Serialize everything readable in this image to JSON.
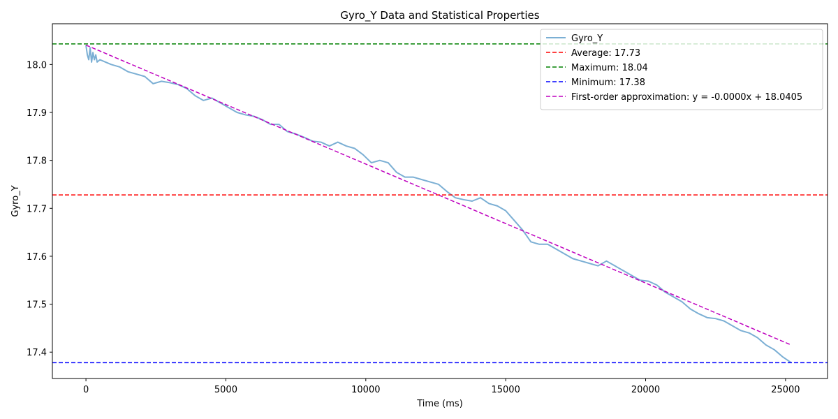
{
  "chart_data": {
    "type": "line",
    "title": "Gyro_Y Data and Statistical Properties",
    "xlabel": "Time (ms)",
    "ylabel": "Gyro_Y",
    "xlim": [
      -1200,
      26500
    ],
    "ylim": [
      17.345,
      18.085
    ],
    "xticks": [
      0,
      5000,
      10000,
      15000,
      20000,
      25000
    ],
    "xtick_labels": [
      "0",
      "5000",
      "10000",
      "15000",
      "20000",
      "25000"
    ],
    "yticks": [
      17.4,
      17.5,
      17.6,
      17.7,
      17.8,
      17.9,
      18.0
    ],
    "ytick_labels": [
      "17.4",
      "17.5",
      "17.6",
      "17.7",
      "17.8",
      "17.9",
      "18.0"
    ],
    "grid": false,
    "legend_position": "top-right",
    "series": [
      {
        "name": "Gyro_Y",
        "color": "#7bafd4",
        "style": "solid",
        "x": [
          0,
          50,
          100,
          150,
          200,
          250,
          300,
          350,
          400,
          500,
          700,
          900,
          1200,
          1500,
          1800,
          2100,
          2400,
          2700,
          3000,
          3300,
          3600,
          3900,
          4200,
          4500,
          4800,
          5100,
          5400,
          5700,
          6000,
          6300,
          6600,
          6900,
          7200,
          7500,
          7800,
          8100,
          8400,
          8700,
          9000,
          9300,
          9600,
          9900,
          10200,
          10500,
          10800,
          11100,
          11400,
          11700,
          12000,
          12300,
          12600,
          12900,
          13200,
          13500,
          13800,
          14100,
          14400,
          14700,
          15000,
          15300,
          15600,
          15900,
          16200,
          16500,
          16800,
          17100,
          17400,
          17700,
          18000,
          18300,
          18600,
          18900,
          19200,
          19500,
          19800,
          20100,
          20400,
          20700,
          21000,
          21300,
          21600,
          21900,
          22200,
          22500,
          22800,
          23100,
          23400,
          23700,
          24000,
          24300,
          24600,
          24900,
          25200
        ],
        "y": [
          18.04,
          18.02,
          18.01,
          18.035,
          18.005,
          18.025,
          18.01,
          18.02,
          18.005,
          18.01,
          18.005,
          18.0,
          17.995,
          17.985,
          17.98,
          17.975,
          17.96,
          17.965,
          17.962,
          17.958,
          17.95,
          17.935,
          17.925,
          17.93,
          17.92,
          17.91,
          17.9,
          17.895,
          17.892,
          17.885,
          17.875,
          17.875,
          17.86,
          17.855,
          17.848,
          17.84,
          17.838,
          17.83,
          17.838,
          17.83,
          17.825,
          17.812,
          17.795,
          17.8,
          17.795,
          17.775,
          17.765,
          17.765,
          17.76,
          17.755,
          17.75,
          17.735,
          17.722,
          17.718,
          17.715,
          17.722,
          17.71,
          17.705,
          17.695,
          17.675,
          17.655,
          17.63,
          17.625,
          17.625,
          17.615,
          17.605,
          17.595,
          17.59,
          17.585,
          17.58,
          17.59,
          17.58,
          17.57,
          17.56,
          17.55,
          17.548,
          17.54,
          17.525,
          17.515,
          17.505,
          17.49,
          17.48,
          17.472,
          17.47,
          17.465,
          17.455,
          17.445,
          17.44,
          17.43,
          17.415,
          17.405,
          17.39,
          17.378
        ]
      },
      {
        "name": "Average: 17.73",
        "color": "#ff0000",
        "style": "dashed",
        "type": "hline",
        "value": 17.728
      },
      {
        "name": "Maximum: 18.04",
        "color": "#008000",
        "style": "dashed",
        "type": "hline",
        "value": 18.043
      },
      {
        "name": "Minimum: 17.38",
        "color": "#0000ff",
        "style": "dashed",
        "type": "hline",
        "value": 17.378
      },
      {
        "name": "First-order approximation: y = -0.0000x + 18.0405",
        "color": "#bf00bf",
        "style": "dashed",
        "x": [
          0,
          25200
        ],
        "y": [
          18.0405,
          17.415
        ]
      }
    ]
  }
}
